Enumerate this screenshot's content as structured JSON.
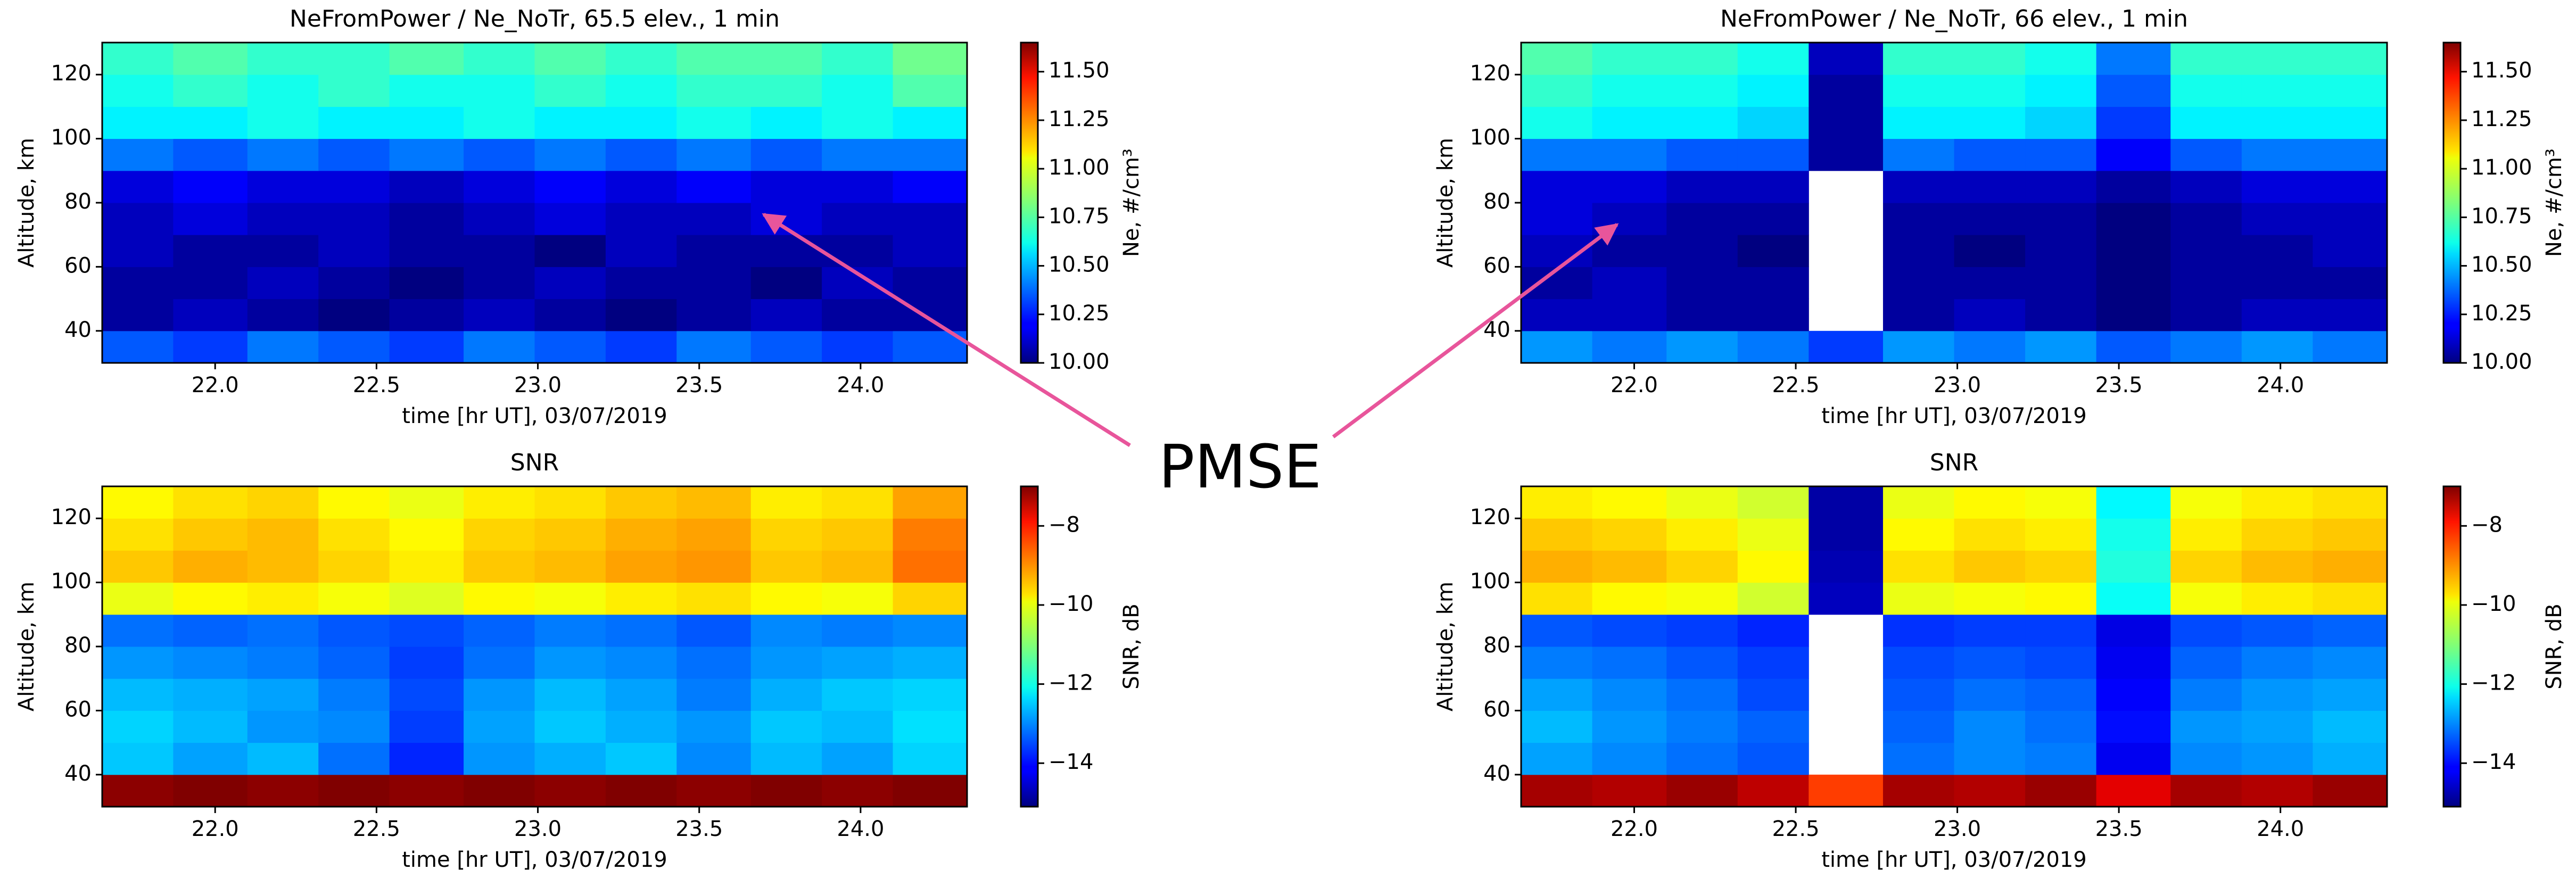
{
  "chart_data": [
    {
      "type": "heatmap",
      "title": "NeFromPower / Ne_NoTr, 65.5 elev., 1 min",
      "xlabel": "time [hr UT], 03/07/2019",
      "ylabel": "Altitude, km",
      "colorbar_label": "Ne, #/cm³",
      "colormap": "jet",
      "xlim": [
        21.65,
        24.33
      ],
      "ylim": [
        30,
        130
      ],
      "xticks": [
        {
          "value": 22,
          "label": "22.0"
        },
        22.5,
        {
          "value": 23,
          "label": "23.0"
        },
        23.5,
        {
          "value": 24,
          "label": "24.0"
        }
      ],
      "yticks": [
        40,
        60,
        80,
        100,
        120
      ],
      "clim": [
        10.0,
        11.65
      ],
      "cticks": [
        {
          "value": 10,
          "label": "10.00"
        },
        10.25,
        {
          "value": 10.5,
          "label": "10.50"
        },
        10.75,
        {
          "value": 11,
          "label": "11.00"
        },
        11.25,
        {
          "value": 11.5,
          "label": "11.50"
        }
      ],
      "x_edges": [
        21.65,
        21.87,
        22.1,
        22.32,
        22.54,
        22.77,
        22.99,
        23.21,
        23.43,
        23.66,
        23.88,
        24.1,
        24.33
      ],
      "y_edges": [
        30,
        40,
        50,
        60,
        70,
        80,
        90,
        100,
        110,
        120,
        130
      ],
      "z": [
        [
          10.35,
          10.3,
          10.4,
          10.35,
          10.3,
          10.4,
          10.35,
          10.3,
          10.4,
          10.35,
          10.3,
          10.35
        ],
        [
          10.05,
          10.1,
          10.05,
          10.0,
          10.05,
          10.1,
          10.05,
          10.0,
          10.05,
          10.1,
          10.05,
          10.05
        ],
        [
          10.05,
          10.05,
          10.1,
          10.05,
          10.0,
          10.05,
          10.1,
          10.05,
          10.05,
          10.0,
          10.1,
          10.05
        ],
        [
          10.1,
          10.05,
          10.05,
          10.1,
          10.05,
          10.05,
          10.0,
          10.1,
          10.05,
          10.05,
          10.05,
          10.1
        ],
        [
          10.1,
          10.15,
          10.1,
          10.1,
          10.05,
          10.1,
          10.15,
          10.1,
          10.1,
          10.15,
          10.1,
          10.1
        ],
        [
          10.15,
          10.2,
          10.15,
          10.15,
          10.1,
          10.15,
          10.2,
          10.15,
          10.2,
          10.15,
          10.15,
          10.2
        ],
        [
          10.4,
          10.35,
          10.4,
          10.35,
          10.4,
          10.35,
          10.4,
          10.35,
          10.4,
          10.35,
          10.4,
          10.4
        ],
        [
          10.6,
          10.6,
          10.65,
          10.6,
          10.6,
          10.65,
          10.6,
          10.6,
          10.65,
          10.6,
          10.65,
          10.6
        ],
        [
          10.65,
          10.7,
          10.65,
          10.7,
          10.65,
          10.65,
          10.7,
          10.65,
          10.7,
          10.7,
          10.65,
          10.75
        ],
        [
          10.7,
          10.75,
          10.7,
          10.7,
          10.75,
          10.7,
          10.75,
          10.7,
          10.75,
          10.75,
          10.7,
          10.8
        ]
      ]
    },
    {
      "type": "heatmap",
      "title": "NeFromPower / Ne_NoTr, 66 elev., 1 min",
      "xlabel": "time [hr UT], 03/07/2019",
      "ylabel": "Altitude, km",
      "colorbar_label": "Ne, #/cm³",
      "colormap": "jet",
      "xlim": [
        21.65,
        24.33
      ],
      "ylim": [
        30,
        130
      ],
      "xticks": [
        {
          "value": 22,
          "label": "22.0"
        },
        22.5,
        {
          "value": 23,
          "label": "23.0"
        },
        23.5,
        {
          "value": 24,
          "label": "24.0"
        }
      ],
      "yticks": [
        40,
        60,
        80,
        100,
        120
      ],
      "clim": [
        10.0,
        11.65
      ],
      "cticks": [
        {
          "value": 10,
          "label": "10.00"
        },
        10.25,
        {
          "value": 10.5,
          "label": "10.50"
        },
        10.75,
        {
          "value": 11,
          "label": "11.00"
        },
        11.25,
        {
          "value": 11.5,
          "label": "11.50"
        }
      ],
      "x_edges": [
        21.65,
        21.87,
        22.1,
        22.32,
        22.54,
        22.77,
        22.99,
        23.21,
        23.43,
        23.66,
        23.88,
        24.1,
        24.33
      ],
      "y_edges": [
        30,
        40,
        50,
        60,
        70,
        80,
        90,
        100,
        110,
        120,
        130
      ],
      "z": [
        [
          10.45,
          10.4,
          10.45,
          10.4,
          10.3,
          10.45,
          10.4,
          10.45,
          10.35,
          10.4,
          10.45,
          10.4
        ],
        [
          10.1,
          10.1,
          10.05,
          10.05,
          null,
          10.05,
          10.1,
          10.05,
          10.0,
          10.05,
          10.1,
          10.1
        ],
        [
          10.05,
          10.1,
          10.05,
          10.05,
          null,
          10.05,
          10.05,
          10.05,
          10.0,
          10.05,
          10.05,
          10.05
        ],
        [
          10.1,
          10.05,
          10.05,
          10.0,
          null,
          10.05,
          10.0,
          10.05,
          10.0,
          10.05,
          10.05,
          10.1
        ],
        [
          10.15,
          10.1,
          10.05,
          10.05,
          null,
          10.05,
          10.05,
          10.05,
          10.0,
          10.05,
          10.1,
          10.1
        ],
        [
          10.15,
          10.15,
          10.1,
          10.1,
          null,
          10.1,
          10.1,
          10.1,
          10.05,
          10.1,
          10.15,
          10.15
        ],
        [
          10.4,
          10.4,
          10.35,
          10.35,
          10.05,
          10.4,
          10.35,
          10.35,
          10.2,
          10.35,
          10.4,
          10.4
        ],
        [
          10.65,
          10.6,
          10.6,
          10.55,
          10.05,
          10.6,
          10.6,
          10.55,
          10.3,
          10.6,
          10.6,
          10.6
        ],
        [
          10.7,
          10.65,
          10.65,
          10.6,
          10.05,
          10.65,
          10.65,
          10.6,
          10.35,
          10.65,
          10.65,
          10.65
        ],
        [
          10.75,
          10.7,
          10.7,
          10.65,
          10.1,
          10.7,
          10.7,
          10.65,
          10.4,
          10.7,
          10.7,
          10.7
        ]
      ]
    },
    {
      "type": "heatmap",
      "title": "SNR",
      "xlabel": "time [hr UT], 03/07/2019",
      "ylabel": "Altitude, km",
      "colorbar_label": "SNR, dB",
      "colormap": "jet",
      "xlim": [
        21.65,
        24.33
      ],
      "ylim": [
        30,
        130
      ],
      "xticks": [
        {
          "value": 22,
          "label": "22.0"
        },
        22.5,
        {
          "value": 23,
          "label": "23.0"
        },
        23.5,
        {
          "value": 24,
          "label": "24.0"
        }
      ],
      "yticks": [
        40,
        60,
        80,
        100,
        120
      ],
      "clim": [
        -15.1,
        -7.0
      ],
      "cticks": [
        {
          "value": -14,
          "label": "−14"
        },
        {
          "value": -12,
          "label": "−12"
        },
        {
          "value": -10,
          "label": "−10"
        },
        {
          "value": -8,
          "label": "−8"
        }
      ],
      "x_edges": [
        21.65,
        21.87,
        22.1,
        22.32,
        22.54,
        22.77,
        22.99,
        23.21,
        23.43,
        23.66,
        23.88,
        24.1,
        24.33
      ],
      "y_edges": [
        30,
        40,
        50,
        60,
        70,
        80,
        90,
        100,
        110,
        120,
        130
      ],
      "z": [
        [
          -7.1,
          -7.0,
          -7.1,
          -7.0,
          -7.1,
          -7.0,
          -7.1,
          -7.0,
          -7.1,
          -7.0,
          -7.1,
          -7.0
        ],
        [
          -12.5,
          -12.8,
          -12.6,
          -13.2,
          -13.8,
          -12.9,
          -12.7,
          -12.5,
          -13.0,
          -12.6,
          -12.8,
          -12.4
        ],
        [
          -12.4,
          -12.6,
          -12.9,
          -13.0,
          -13.6,
          -12.8,
          -12.5,
          -12.7,
          -12.9,
          -12.5,
          -12.6,
          -12.3
        ],
        [
          -12.6,
          -12.7,
          -12.8,
          -13.1,
          -13.5,
          -12.9,
          -12.6,
          -12.8,
          -13.1,
          -12.7,
          -12.5,
          -12.4
        ],
        [
          -12.9,
          -13.0,
          -13.1,
          -13.3,
          -13.6,
          -13.2,
          -12.9,
          -13.0,
          -13.2,
          -12.9,
          -12.8,
          -12.7
        ],
        [
          -13.2,
          -13.3,
          -13.2,
          -13.4,
          -13.5,
          -13.3,
          -13.1,
          -13.2,
          -13.4,
          -13.0,
          -13.1,
          -13.0
        ],
        [
          -10.2,
          -10.0,
          -9.9,
          -10.1,
          -10.3,
          -10.0,
          -10.1,
          -9.9,
          -9.8,
          -10.0,
          -10.1,
          -9.7
        ],
        [
          -9.6,
          -9.4,
          -9.5,
          -9.7,
          -9.9,
          -9.6,
          -9.5,
          -9.3,
          -9.2,
          -9.6,
          -9.5,
          -8.9
        ],
        [
          -9.8,
          -9.6,
          -9.5,
          -9.8,
          -10.0,
          -9.7,
          -9.6,
          -9.4,
          -9.3,
          -9.7,
          -9.6,
          -9.0
        ],
        [
          -10.0,
          -9.8,
          -9.7,
          -10.0,
          -10.2,
          -9.9,
          -9.8,
          -9.6,
          -9.5,
          -9.9,
          -9.8,
          -9.3
        ]
      ]
    },
    {
      "type": "heatmap",
      "title": "SNR",
      "xlabel": "time [hr UT], 03/07/2019",
      "ylabel": "Altitude, km",
      "colorbar_label": "SNR, dB",
      "colormap": "jet",
      "xlim": [
        21.65,
        24.33
      ],
      "ylim": [
        30,
        130
      ],
      "xticks": [
        {
          "value": 22,
          "label": "22.0"
        },
        22.5,
        {
          "value": 23,
          "label": "23.0"
        },
        23.5,
        {
          "value": 24,
          "label": "24.0"
        }
      ],
      "yticks": [
        40,
        60,
        80,
        100,
        120
      ],
      "clim": [
        -15.1,
        -7.0
      ],
      "cticks": [
        {
          "value": -14,
          "label": "−14"
        },
        {
          "value": -12,
          "label": "−12"
        },
        {
          "value": -10,
          "label": "−10"
        },
        {
          "value": -8,
          "label": "−8"
        }
      ],
      "x_edges": [
        21.65,
        21.87,
        22.1,
        22.32,
        22.54,
        22.77,
        22.99,
        23.21,
        23.43,
        23.66,
        23.88,
        24.1,
        24.33
      ],
      "y_edges": [
        30,
        40,
        50,
        60,
        70,
        80,
        90,
        100,
        110,
        120,
        130
      ],
      "z": [
        [
          -7.3,
          -7.4,
          -7.2,
          -7.5,
          -8.5,
          -7.3,
          -7.4,
          -7.2,
          -7.8,
          -7.3,
          -7.4,
          -7.2
        ],
        [
          -12.8,
          -13.0,
          -13.2,
          -13.4,
          null,
          -13.2,
          -13.0,
          -13.1,
          -14.2,
          -13.0,
          -12.9,
          -12.7
        ],
        [
          -12.6,
          -12.9,
          -13.1,
          -13.3,
          null,
          -13.3,
          -13.0,
          -13.2,
          -14.0,
          -12.9,
          -12.8,
          -12.6
        ],
        [
          -12.8,
          -13.0,
          -13.2,
          -13.5,
          null,
          -13.4,
          -13.2,
          -13.3,
          -14.1,
          -13.1,
          -12.9,
          -12.8
        ],
        [
          -13.1,
          -13.2,
          -13.4,
          -13.6,
          null,
          -13.5,
          -13.4,
          -13.5,
          -14.2,
          -13.3,
          -13.1,
          -13.0
        ],
        [
          -13.4,
          -13.5,
          -13.6,
          -13.8,
          null,
          -13.7,
          -13.6,
          -13.6,
          -14.3,
          -13.5,
          -13.4,
          -13.3
        ],
        [
          -9.8,
          -10.0,
          -10.1,
          -10.4,
          -14.6,
          -10.2,
          -10.1,
          -10.0,
          -12.0,
          -10.1,
          -9.9,
          -9.8
        ],
        [
          -9.4,
          -9.5,
          -9.7,
          -10.0,
          -14.7,
          -9.8,
          -9.6,
          -9.7,
          -11.8,
          -9.7,
          -9.5,
          -9.4
        ],
        [
          -9.6,
          -9.7,
          -9.9,
          -10.2,
          -14.8,
          -10.0,
          -9.8,
          -9.9,
          -11.9,
          -9.9,
          -9.7,
          -9.6
        ],
        [
          -9.9,
          -10.0,
          -10.2,
          -10.4,
          -14.8,
          -10.2,
          -10.0,
          -10.1,
          -12.1,
          -10.1,
          -9.9,
          -9.8
        ]
      ]
    }
  ],
  "annotation": "PMSE"
}
